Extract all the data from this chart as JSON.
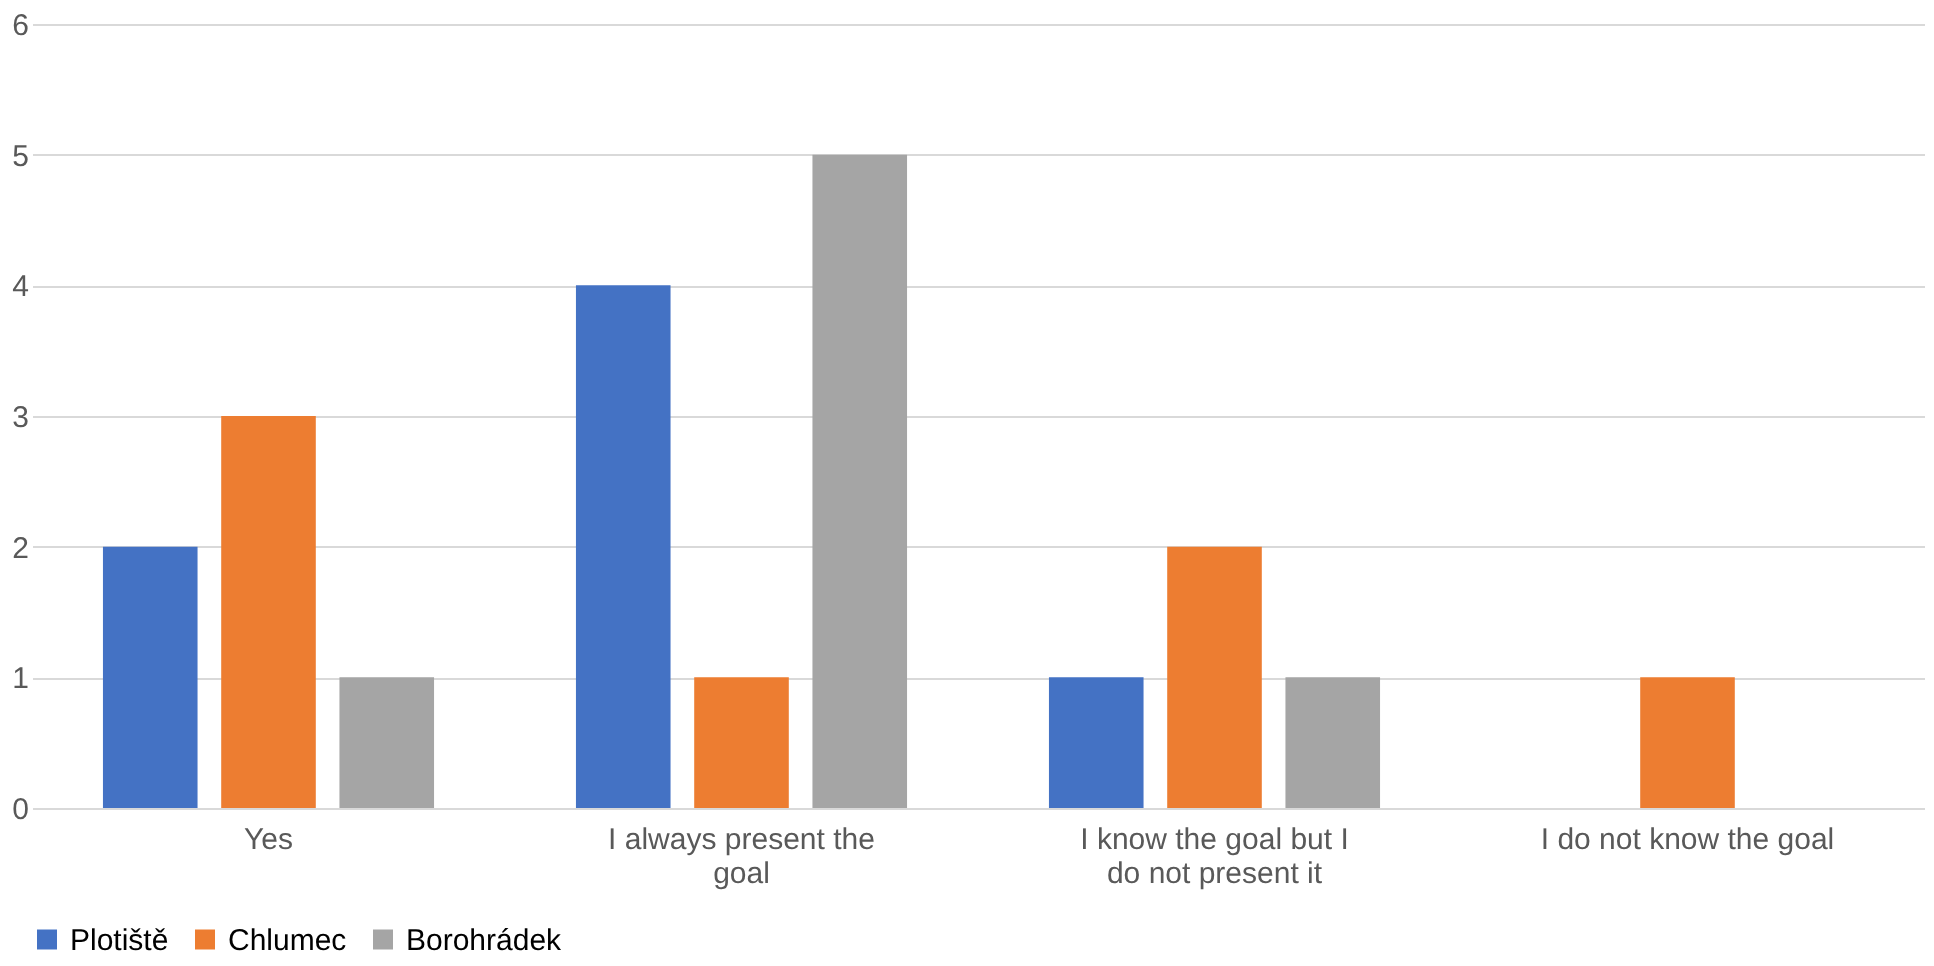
{
  "chart_data": {
    "type": "bar",
    "categories": [
      "Yes",
      "I always present the goal",
      "I know the goal but I do not present it",
      "I do not know the goal"
    ],
    "series": [
      {
        "name": "Plotiště",
        "color": "#4472c4",
        "values": [
          2,
          4,
          1,
          0
        ]
      },
      {
        "name": "Chlumec",
        "color": "#ed7d31",
        "values": [
          3,
          1,
          2,
          1
        ]
      },
      {
        "name": "Borohrádek",
        "color": "#a5a5a5",
        "values": [
          1,
          5,
          1,
          0
        ]
      }
    ],
    "ylim": [
      0,
      6
    ],
    "yticks": [
      0,
      1,
      2,
      3,
      4,
      5,
      6
    ],
    "grid": "y",
    "legend": "bottom"
  }
}
